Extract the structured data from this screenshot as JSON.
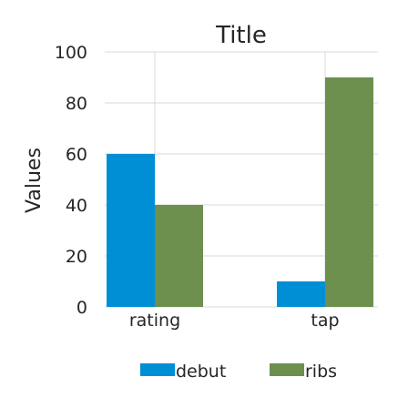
{
  "chart_data": {
    "type": "bar",
    "title": "Title",
    "xlabel": "",
    "ylabel": "Values",
    "categories": [
      "rating",
      "tap"
    ],
    "series": [
      {
        "name": "debut",
        "values": [
          60,
          10
        ],
        "color": "#008fd5"
      },
      {
        "name": "ribs",
        "values": [
          40,
          90
        ],
        "color": "#6d904f"
      }
    ],
    "ylim": [
      0,
      100
    ],
    "yticks": [
      "0",
      "20",
      "40",
      "60",
      "80",
      "100"
    ],
    "grid": true,
    "legend_position": "bottom"
  }
}
